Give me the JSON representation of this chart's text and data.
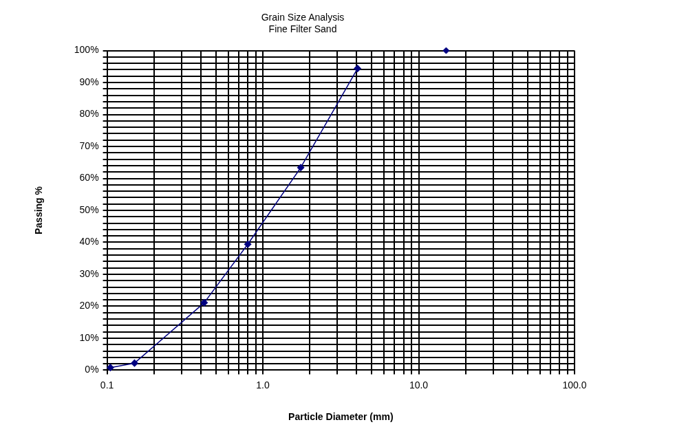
{
  "chart_data": {
    "type": "line",
    "title": "Grain Size Analysis",
    "subtitle": "Fine Filter Sand",
    "xlabel": "Particle Diameter (mm)",
    "ylabel": "Passing %",
    "log": "x",
    "grid": true,
    "marker": "diamond",
    "legend": false,
    "xlim": [
      0.1,
      100
    ],
    "ylim": [
      0,
      100
    ],
    "xticks": [
      {
        "value": 0.1,
        "label": "0.1"
      },
      {
        "value": 0.2,
        "label": null
      },
      {
        "value": 0.3,
        "label": null
      },
      {
        "value": 0.4,
        "label": null
      },
      {
        "value": 0.5,
        "label": null
      },
      {
        "value": 0.6,
        "label": null
      },
      {
        "value": 0.7,
        "label": null
      },
      {
        "value": 0.8,
        "label": null
      },
      {
        "value": 0.9,
        "label": null
      },
      {
        "value": 1,
        "label": "1.0"
      },
      {
        "value": 2,
        "label": null
      },
      {
        "value": 3,
        "label": null
      },
      {
        "value": 4,
        "label": null
      },
      {
        "value": 5,
        "label": null
      },
      {
        "value": 6,
        "label": null
      },
      {
        "value": 7,
        "label": null
      },
      {
        "value": 8,
        "label": null
      },
      {
        "value": 9,
        "label": null
      },
      {
        "value": 10,
        "label": "10.0"
      },
      {
        "value": 20,
        "label": null
      },
      {
        "value": 30,
        "label": null
      },
      {
        "value": 40,
        "label": null
      },
      {
        "value": 50,
        "label": null
      },
      {
        "value": 60,
        "label": null
      },
      {
        "value": 70,
        "label": null
      },
      {
        "value": 80,
        "label": null
      },
      {
        "value": 90,
        "label": null
      },
      {
        "value": 100,
        "label": "100.0"
      }
    ],
    "yticks": [
      {
        "value": 0,
        "label": "0%"
      },
      {
        "value": 2,
        "label": null
      },
      {
        "value": 4,
        "label": null
      },
      {
        "value": 6,
        "label": null
      },
      {
        "value": 8,
        "label": null
      },
      {
        "value": 10,
        "label": "10%"
      },
      {
        "value": 12,
        "label": null
      },
      {
        "value": 14,
        "label": null
      },
      {
        "value": 16,
        "label": null
      },
      {
        "value": 18,
        "label": null
      },
      {
        "value": 20,
        "label": "20%"
      },
      {
        "value": 22,
        "label": null
      },
      {
        "value": 24,
        "label": null
      },
      {
        "value": 26,
        "label": null
      },
      {
        "value": 28,
        "label": null
      },
      {
        "value": 30,
        "label": "30%"
      },
      {
        "value": 32,
        "label": null
      },
      {
        "value": 34,
        "label": null
      },
      {
        "value": 36,
        "label": null
      },
      {
        "value": 38,
        "label": null
      },
      {
        "value": 40,
        "label": "40%"
      },
      {
        "value": 42,
        "label": null
      },
      {
        "value": 44,
        "label": null
      },
      {
        "value": 46,
        "label": null
      },
      {
        "value": 48,
        "label": null
      },
      {
        "value": 50,
        "label": "50%"
      },
      {
        "value": 52,
        "label": null
      },
      {
        "value": 54,
        "label": null
      },
      {
        "value": 56,
        "label": null
      },
      {
        "value": 58,
        "label": null
      },
      {
        "value": 60,
        "label": "60%"
      },
      {
        "value": 62,
        "label": null
      },
      {
        "value": 64,
        "label": null
      },
      {
        "value": 66,
        "label": null
      },
      {
        "value": 68,
        "label": null
      },
      {
        "value": 70,
        "label": "70%"
      },
      {
        "value": 72,
        "label": null
      },
      {
        "value": 74,
        "label": null
      },
      {
        "value": 76,
        "label": null
      },
      {
        "value": 78,
        "label": null
      },
      {
        "value": 80,
        "label": "80%"
      },
      {
        "value": 82,
        "label": null
      },
      {
        "value": 84,
        "label": null
      },
      {
        "value": 86,
        "label": null
      },
      {
        "value": 88,
        "label": null
      },
      {
        "value": 90,
        "label": "90%"
      },
      {
        "value": 92,
        "label": null
      },
      {
        "value": 94,
        "label": null
      },
      {
        "value": 96,
        "label": null
      },
      {
        "value": 98,
        "label": null
      },
      {
        "value": 100,
        "label": "100%"
      }
    ],
    "series": [
      {
        "color": "#000080",
        "x": [
          0.105,
          0.15,
          0.42,
          0.8,
          1.75,
          4.05
        ],
        "values": [
          0.8,
          2.2,
          21.1,
          39.4,
          63.4,
          94.4
        ]
      },
      {
        "type": "scatter",
        "color": "#000080",
        "x": [
          15
        ],
        "values": [
          100
        ]
      }
    ]
  }
}
